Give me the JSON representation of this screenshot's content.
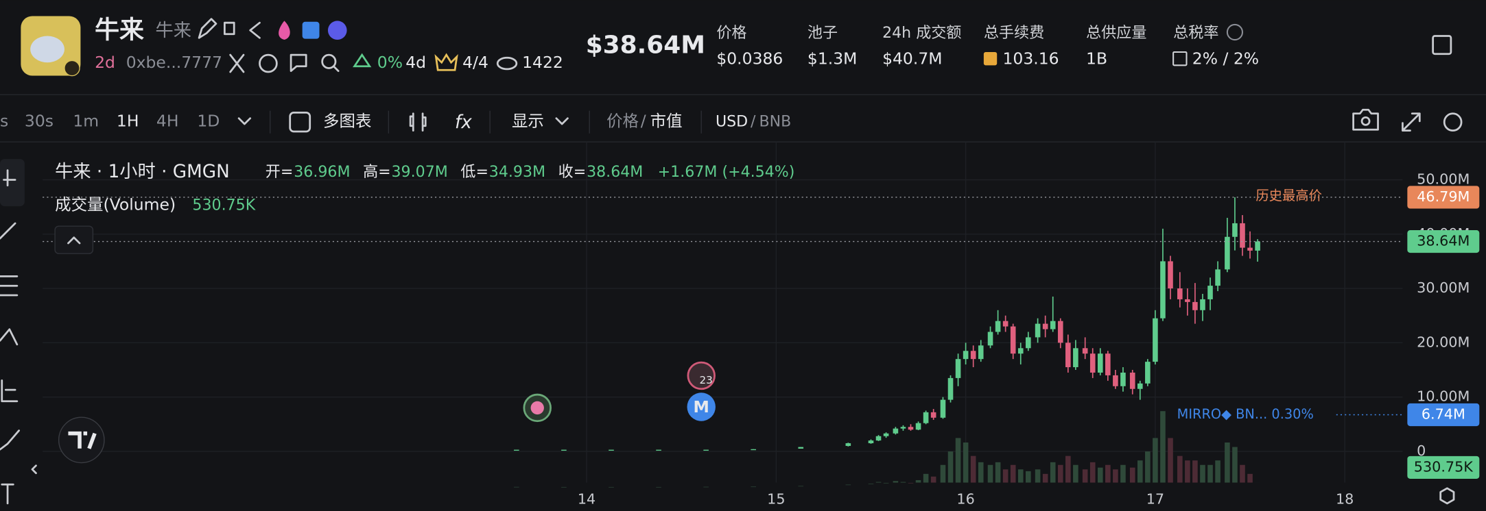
{
  "header": {
    "name": "牛来",
    "symbol": "牛来",
    "age": "2d",
    "address": "0xbe...7777",
    "holders_change": "0%",
    "holders_period": "4d",
    "crown": "4/4",
    "views": "1422",
    "market_cap": "$38.64M",
    "stats": [
      {
        "label": "价格",
        "value": "$0.0386"
      },
      {
        "label": "池子",
        "value": "$1.3M"
      },
      {
        "label": "24h 成交额",
        "value": "$40.7M"
      },
      {
        "label": "总手续费",
        "value": "103.16"
      },
      {
        "label": "总供应量",
        "value": "1B"
      },
      {
        "label": "总税率",
        "value": "2% / 2%"
      }
    ]
  },
  "toolbar": {
    "intervals": [
      "s",
      "30s",
      "1m",
      "1H",
      "4H",
      "1D"
    ],
    "active_interval": "1H",
    "multi_chart": "多图表",
    "display": "显示",
    "price_mode": "价格",
    "separator": "/",
    "mcap_mode": "市值",
    "currency": "USD",
    "alt_currency": "BNB"
  },
  "legend": {
    "title": "牛来 · 1小时 · GMGN",
    "ohlc": [
      {
        "label": "开=",
        "value": "36.96M"
      },
      {
        "label": "高=",
        "value": "39.07M"
      },
      {
        "label": "低=",
        "value": "34.93M"
      },
      {
        "label": "收=",
        "value": "38.64M"
      }
    ],
    "change": "+1.67M (+4.54%)",
    "volume_label": "成交量(Volume)",
    "volume_value": "530.75K"
  },
  "markers": [
    "23",
    "M"
  ],
  "chart_data": {
    "type": "candlestick",
    "x": [
      13.63,
      13.88,
      14.13,
      14.38,
      14.63,
      14.88,
      15.13,
      15.38,
      15.5,
      15.54,
      15.58,
      15.63,
      15.67,
      15.71,
      15.75,
      15.79,
      15.83,
      15.88,
      15.92,
      15.96,
      16.0,
      16.04,
      16.08,
      16.13,
      16.17,
      16.21,
      16.25,
      16.29,
      16.33,
      16.38,
      16.42,
      16.46,
      16.5,
      16.54,
      16.58,
      16.63,
      16.67,
      16.71,
      16.75,
      16.79,
      16.83,
      16.88,
      16.92,
      16.96,
      17.0,
      17.04,
      17.08,
      17.13,
      17.17,
      17.21,
      17.25,
      17.29,
      17.33,
      17.38,
      17.42,
      17.46,
      17.5,
      17.54
    ],
    "open": [
      0.3,
      0.3,
      0.3,
      0.3,
      0.3,
      0.3,
      0.5,
      1.0,
      1.5,
      2.0,
      2.8,
      3.3,
      4.2,
      4.5,
      4.0,
      5.2,
      7.2,
      6.2,
      9.5,
      13.5,
      17.0,
      18.5,
      17.0,
      19.5,
      22.0,
      24.0,
      23.0,
      18.0,
      19.0,
      21.0,
      23.5,
      22.5,
      24.0,
      20.0,
      15.5,
      19.0,
      18.0,
      14.5,
      18.0,
      14.0,
      12.0,
      14.5,
      11.5,
      12.5,
      16.5,
      24.5,
      35.0,
      30.0,
      28.0,
      27.5,
      26.0,
      28.0,
      30.5,
      33.5,
      39.5,
      42.0,
      37.5,
      36.96
    ],
    "high": [
      0.3,
      0.3,
      0.3,
      0.3,
      0.3,
      0.4,
      0.8,
      1.6,
      2.2,
      3.0,
      3.5,
      4.5,
      4.8,
      5.0,
      5.5,
      7.5,
      7.8,
      10.0,
      14.0,
      18.0,
      20.0,
      19.5,
      20.5,
      23.0,
      26.0,
      25.0,
      23.5,
      20.0,
      22.0,
      24.5,
      25.0,
      28.5,
      24.5,
      21.5,
      20.5,
      21.0,
      19.0,
      19.0,
      18.5,
      15.0,
      15.5,
      15.0,
      13.0,
      17.0,
      26.0,
      41.0,
      36.0,
      33.0,
      30.0,
      31.0,
      29.0,
      32.0,
      35.0,
      43.0,
      46.79,
      43.5,
      40.5,
      39.07
    ],
    "low": [
      0.3,
      0.3,
      0.3,
      0.3,
      0.3,
      0.3,
      0.5,
      0.9,
      1.4,
      1.9,
      2.5,
      3.1,
      3.8,
      3.8,
      3.9,
      5.0,
      5.8,
      6.0,
      9.0,
      12.0,
      16.0,
      15.5,
      16.5,
      19.0,
      21.5,
      22.0,
      17.0,
      16.0,
      18.5,
      20.0,
      21.0,
      22.0,
      19.0,
      14.5,
      15.0,
      17.0,
      13.5,
      14.0,
      13.0,
      11.5,
      11.0,
      10.5,
      9.5,
      12.0,
      16.0,
      24.0,
      28.0,
      26.5,
      25.0,
      23.5,
      24.0,
      26.0,
      29.5,
      33.0,
      37.0,
      36.0,
      35.5,
      34.93
    ],
    "close": [
      0.3,
      0.3,
      0.3,
      0.3,
      0.3,
      0.4,
      0.8,
      1.5,
      2.0,
      2.8,
      3.3,
      4.2,
      4.5,
      4.0,
      5.2,
      7.2,
      6.2,
      9.5,
      13.5,
      17.0,
      18.5,
      17.0,
      19.5,
      22.0,
      24.0,
      23.0,
      18.0,
      19.0,
      21.0,
      23.5,
      22.5,
      24.0,
      20.0,
      15.5,
      19.0,
      18.0,
      14.5,
      18.0,
      14.0,
      12.0,
      14.5,
      11.5,
      12.5,
      16.5,
      24.5,
      35.0,
      30.0,
      28.0,
      27.5,
      26.0,
      28.0,
      30.5,
      33.5,
      39.5,
      42.0,
      37.5,
      36.96,
      38.64
    ],
    "volume": [
      50,
      40,
      40,
      40,
      60,
      80,
      150,
      300,
      400,
      600,
      500,
      700,
      600,
      500,
      800,
      1500,
      1200,
      2500,
      4000,
      5500,
      5000,
      3500,
      2800,
      2500,
      2800,
      2000,
      2500,
      2000,
      1800,
      2000,
      1500,
      2800,
      2500,
      3500,
      2500,
      2000,
      2800,
      2200,
      2500,
      2000,
      2500,
      2200,
      3000,
      4000,
      5500,
      8500,
      5500,
      3500,
      3000,
      3000,
      2500,
      2500,
      3000,
      5000,
      4500,
      2500,
      1500,
      530.75
    ],
    "up_color": "#5fcc8d",
    "down_color": "#e0607e",
    "volume_up_color": "#2f4a3a",
    "volume_down_color": "#4d2b35",
    "xlim": [
      11.13,
      18.305
    ],
    "xticks": [
      14,
      15,
      16,
      17,
      18
    ],
    "ylim": [
      -5.75,
      56.97
    ],
    "yticks": [
      0,
      {
        "value": 10,
        "label": "10.00M"
      },
      {
        "value": 20,
        "label": "20.00M"
      },
      {
        "value": 30,
        "label": "30.00M"
      },
      {
        "value": 40,
        "label": "40.00M"
      },
      {
        "value": 50,
        "label": "50.00M"
      }
    ],
    "y2lim": [
      0,
      38000
    ],
    "grid": true,
    "price_lines": [
      {
        "value": 46.79,
        "label": "46.79M",
        "text": "历史最高价",
        "color": "#e8875a"
      },
      {
        "value": 38.64,
        "label": "38.64M",
        "color": "#5fcc8d"
      },
      {
        "value": 6.74,
        "label": "6.74M",
        "text": "MIRRO◆ BN... 0.30%",
        "color": "#3f86e8"
      }
    ],
    "volume_line": {
      "value": 530.75,
      "label": "530.75K",
      "color": "#5fcc8d"
    }
  }
}
